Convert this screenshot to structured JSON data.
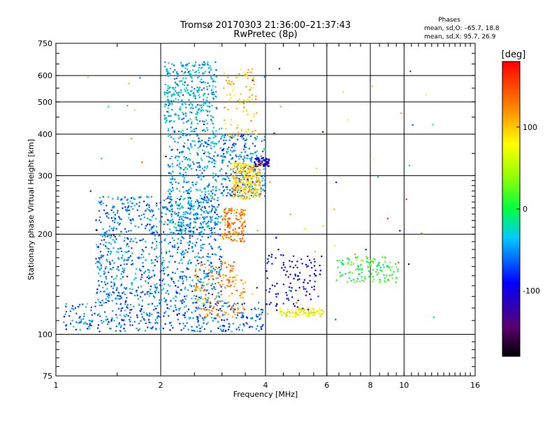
{
  "title": {
    "line1": "Tromsø 20170303 21:36:00–21:37:43",
    "line2": "RwPretec (8p)"
  },
  "phases_box": {
    "header": "Phases",
    "o_line": "mean, sd,O: –65.7, 18.8",
    "x_line": "mean, sd,X:  95.7, 26.9"
  },
  "chart_data": {
    "type": "scatter",
    "xlabel": "Frequency [MHz]",
    "ylabel": "Stationary phase Virtual Height [km]",
    "xscale": "log2",
    "yscale": "log",
    "xlim": [
      1,
      16
    ],
    "ylim": [
      75,
      750
    ],
    "x_ticks": [
      1,
      2,
      4,
      6,
      8,
      10,
      16
    ],
    "x_tick_labels": [
      "1",
      "2",
      "4",
      "6",
      "8",
      "10",
      "16"
    ],
    "y_ticks": [
      75,
      100,
      200,
      300,
      400,
      500,
      600,
      750
    ],
    "y_tick_labels": [
      "75",
      "100",
      "200",
      "300",
      "400",
      "500",
      "600",
      "750"
    ],
    "grid": true,
    "colorbar": {
      "label": "[deg]",
      "range": [
        -180,
        180
      ],
      "ticks": [
        100,
        0,
        -100
      ],
      "tick_labels": [
        "100",
        "0",
        "-100"
      ]
    },
    "clusters": [
      {
        "name": "E-layer trace (cyan/blue)",
        "x": [
          1.05,
          4.0
        ],
        "y": [
          102,
          125
        ],
        "phase": -60,
        "n": 400
      },
      {
        "name": "F1 spread (cyan)",
        "x": [
          1.3,
          3.0
        ],
        "y": [
          125,
          260
        ],
        "phase": -55,
        "n": 900
      },
      {
        "name": "F-region column",
        "x": [
          2.1,
          3.0
        ],
        "y": [
          200,
          420
        ],
        "phase": -45,
        "n": 450
      },
      {
        "name": "High F spread",
        "x": [
          2.05,
          2.9
        ],
        "y": [
          430,
          660
        ],
        "phase": -40,
        "n": 320
      },
      {
        "name": "F2 lower (cyan)",
        "x": [
          3.0,
          4.0
        ],
        "y": [
          260,
          400
        ],
        "phase": -55,
        "n": 260
      },
      {
        "name": "X-mode yellow cluster",
        "x": [
          3.2,
          3.9
        ],
        "y": [
          255,
          330
        ],
        "phase": 100,
        "n": 260
      },
      {
        "name": "X-mode upper yellow",
        "x": [
          3.0,
          3.8
        ],
        "y": [
          390,
          640
        ],
        "phase": 95,
        "n": 90
      },
      {
        "name": "Orange band 200-240",
        "x": [
          3.0,
          3.5
        ],
        "y": [
          190,
          240
        ],
        "phase": 130,
        "n": 130
      },
      {
        "name": "Orange lower",
        "x": [
          2.5,
          3.5
        ],
        "y": [
          112,
          165
        ],
        "phase": 125,
        "n": 160
      },
      {
        "name": "Yellow-green trace",
        "x": [
          4.4,
          5.9
        ],
        "y": [
          113,
          120
        ],
        "phase": 75,
        "n": 90
      },
      {
        "name": "Blue 4-6 MHz",
        "x": [
          4.0,
          5.8
        ],
        "y": [
          118,
          175
        ],
        "phase": -100,
        "n": 110
      },
      {
        "name": "Dark blue F2 cusp",
        "x": [
          3.7,
          4.1
        ],
        "y": [
          320,
          340
        ],
        "phase": -110,
        "n": 60
      },
      {
        "name": "Cluster 6.5-10 MHz",
        "x": [
          6.4,
          9.6
        ],
        "y": [
          143,
          172
        ],
        "phase": 10,
        "n": 130
      },
      {
        "name": "Scattered sparse points",
        "x": [
          1.2,
          13.0
        ],
        "y": [
          110,
          650
        ],
        "phase": 0,
        "n": 80
      }
    ]
  }
}
